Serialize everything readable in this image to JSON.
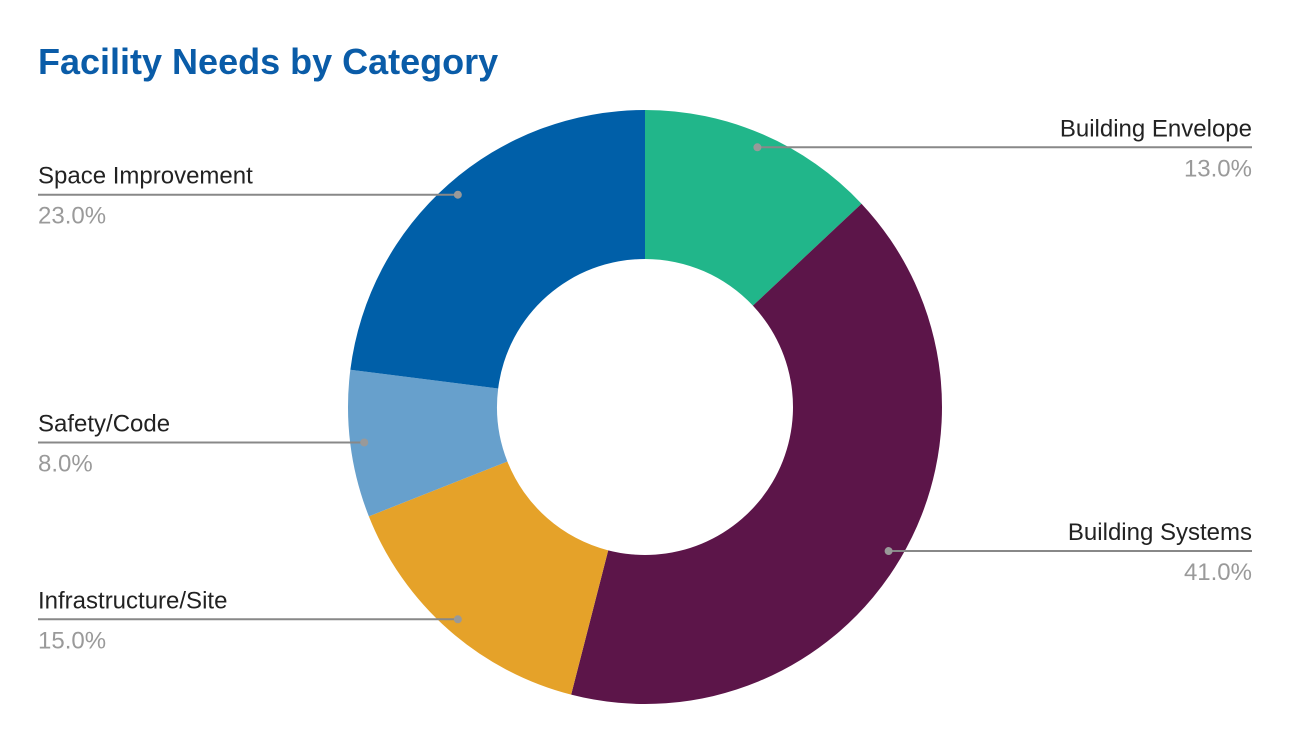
{
  "chart_data": {
    "type": "pie",
    "title": "Facility Needs by Category",
    "categories": [
      "Building Envelope",
      "Building Systems",
      "Infrastructure/Site",
      "Safety/Code",
      "Space Improvement"
    ],
    "values": [
      13,
      41,
      15,
      8,
      23
    ],
    "value_labels": [
      "13.0%",
      "41.0%",
      "15.0%",
      "8.0%",
      "23.0%"
    ],
    "colors": [
      "#21b68a",
      "#5c1549",
      "#e5a229",
      "#67a0cc",
      "#005fa8"
    ],
    "donut": true
  }
}
